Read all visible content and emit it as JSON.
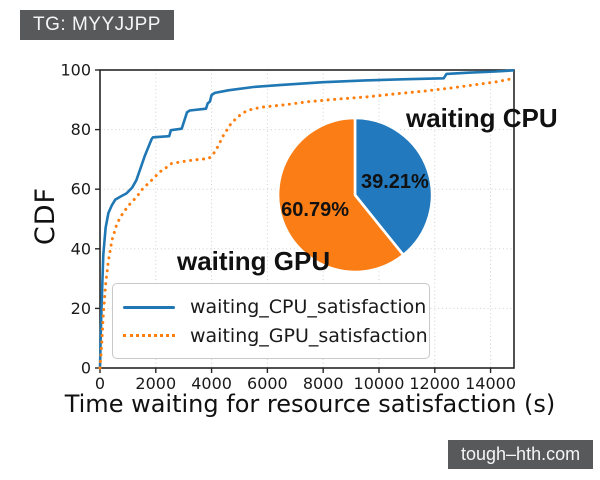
{
  "page": {
    "tag": "TG: MYYJJPP",
    "watermark": "tough–hth.com"
  },
  "chart_data": {
    "type": "line",
    "title": "",
    "xlabel": "Time waiting for resource satisfaction (s)",
    "ylabel": "CDF",
    "xlim": [
      0,
      14840
    ],
    "ylim": [
      0,
      100
    ],
    "xticks": [
      0,
      2000,
      4000,
      6000,
      8000,
      10000,
      12000,
      14000
    ],
    "yticks": [
      0,
      20,
      40,
      60,
      80,
      100
    ],
    "grid": true,
    "legend_position": "lower-left-inside",
    "series": [
      {
        "name": "waiting_CPU_satisfaction",
        "style": "solid",
        "color": "#1f77b4",
        "points": [
          [
            0,
            0
          ],
          [
            30,
            12
          ],
          [
            70,
            25
          ],
          [
            120,
            38
          ],
          [
            200,
            47
          ],
          [
            300,
            52
          ],
          [
            420,
            54.5
          ],
          [
            550,
            56.5
          ],
          [
            750,
            57.6
          ],
          [
            950,
            58.6
          ],
          [
            1150,
            60.5
          ],
          [
            1300,
            63
          ],
          [
            1450,
            67
          ],
          [
            1600,
            71
          ],
          [
            1750,
            74.5
          ],
          [
            1850,
            76.8
          ],
          [
            1900,
            77.4
          ],
          [
            2480,
            77.8
          ],
          [
            2540,
            79.8
          ],
          [
            2930,
            80.3
          ],
          [
            3020,
            83
          ],
          [
            3120,
            85.8
          ],
          [
            3220,
            86.4
          ],
          [
            3800,
            87
          ],
          [
            3860,
            88.8
          ],
          [
            3940,
            89.4
          ],
          [
            4000,
            91.6
          ],
          [
            4120,
            92.3
          ],
          [
            4600,
            93.2
          ],
          [
            5500,
            94.3
          ],
          [
            6500,
            95
          ],
          [
            8000,
            95.9
          ],
          [
            9500,
            96.5
          ],
          [
            11000,
            96.9
          ],
          [
            12320,
            97.2
          ],
          [
            12420,
            98.7
          ],
          [
            13200,
            99.1
          ],
          [
            14200,
            99.5
          ],
          [
            14840,
            99.9
          ]
        ]
      },
      {
        "name": "waiting_GPU_satisfaction",
        "style": "dotted",
        "color": "#ff7f0e",
        "points": [
          [
            0,
            0
          ],
          [
            60,
            8
          ],
          [
            120,
            18
          ],
          [
            200,
            28
          ],
          [
            300,
            36
          ],
          [
            430,
            43
          ],
          [
            610,
            48.5
          ],
          [
            820,
            52
          ],
          [
            1070,
            55
          ],
          [
            1320,
            57.5
          ],
          [
            1540,
            60.3
          ],
          [
            1790,
            62.4
          ],
          [
            2040,
            64.8
          ],
          [
            2210,
            66.3
          ],
          [
            2400,
            67.4
          ],
          [
            2560,
            68.6
          ],
          [
            2850,
            69.1
          ],
          [
            3350,
            69.8
          ],
          [
            3900,
            70.3
          ],
          [
            4060,
            71.8
          ],
          [
            4220,
            74.2
          ],
          [
            4420,
            78
          ],
          [
            4660,
            81.5
          ],
          [
            4900,
            84
          ],
          [
            5160,
            85.8
          ],
          [
            5460,
            86.9
          ],
          [
            5850,
            87.6
          ],
          [
            6600,
            88.3
          ],
          [
            7500,
            89.4
          ],
          [
            8600,
            90.3
          ],
          [
            9600,
            91
          ],
          [
            10600,
            92
          ],
          [
            11600,
            92.9
          ],
          [
            12600,
            94
          ],
          [
            13400,
            95
          ],
          [
            14200,
            96
          ],
          [
            14840,
            97.2
          ]
        ]
      }
    ],
    "inset_pie": {
      "type": "pie",
      "start": "top",
      "direction": "clockwise",
      "slices": [
        {
          "label": "waiting CPU",
          "value": 39.21,
          "display": "39.21%",
          "color": "#2279bd"
        },
        {
          "label": "waiting GPU",
          "value": 60.79,
          "display": "60.79%",
          "color": "#fa7d15"
        }
      ]
    },
    "style_hints": {
      "grid_color": "#cfcfcf",
      "spine_color": "#262626",
      "tick_label_color": "#1a1a1a",
      "overlay_bg": "#58595b"
    }
  }
}
